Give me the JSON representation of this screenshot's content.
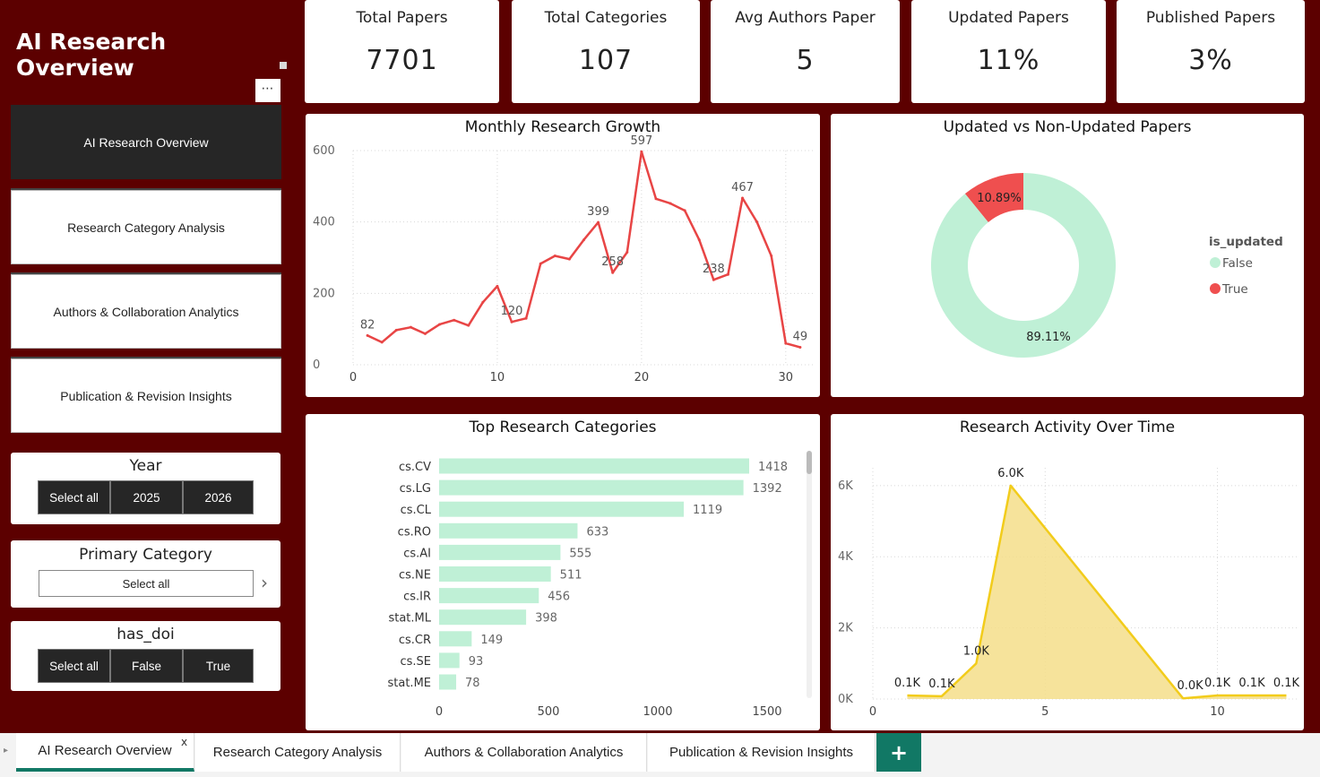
{
  "sidebar": {
    "title": "AI Research Overview",
    "more_label": "⋯",
    "nav": [
      {
        "label": "AI Research Overview"
      },
      {
        "label": "Research Category Analysis"
      },
      {
        "label": "Authors & Collaboration Analytics"
      },
      {
        "label": "Publication & Revision Insights"
      }
    ],
    "year_slicer": {
      "title": "Year",
      "options": [
        "Select all",
        "2025",
        "2026"
      ]
    },
    "category_slicer": {
      "title": "Primary Category",
      "value": "Select all",
      "chevron": "›"
    },
    "doi_slicer": {
      "title": "has_doi",
      "options": [
        "Select all",
        "False",
        "True"
      ]
    }
  },
  "kpis": [
    {
      "label": "Total Papers",
      "value": "7701"
    },
    {
      "label": "Total Categories",
      "value": "107"
    },
    {
      "label": "Avg Authors Paper",
      "value": "5"
    },
    {
      "label": "Updated Papers",
      "value": "11%"
    },
    {
      "label": "Published Papers",
      "value": "3%"
    }
  ],
  "colors": {
    "background": "#5c0000",
    "line": "#e84545",
    "mint": "#bff0d6",
    "red": "#ef4f4f",
    "gold": "#f2cc1b",
    "area_fill": "#f5de8a",
    "tab_accent": "#117865"
  },
  "chart_data": [
    {
      "type": "line",
      "title": "Monthly Research Growth",
      "x": [
        1,
        2,
        3,
        4,
        5,
        6,
        7,
        8,
        9,
        10,
        11,
        12,
        13,
        14,
        15,
        16,
        17,
        18,
        19,
        20,
        21,
        22,
        23,
        24,
        25,
        26,
        27,
        28,
        29,
        30,
        31
      ],
      "values": [
        82,
        63,
        97,
        105,
        87,
        113,
        125,
        110,
        175,
        220,
        120,
        130,
        283,
        305,
        296,
        350,
        399,
        258,
        315,
        597,
        465,
        452,
        432,
        350,
        238,
        253,
        467,
        400,
        305,
        60,
        49
      ],
      "point_labels": [
        {
          "index": 0,
          "text": "82"
        },
        {
          "index": 10,
          "text": "120"
        },
        {
          "index": 16,
          "text": "399"
        },
        {
          "index": 17,
          "text": "258"
        },
        {
          "index": 19,
          "text": "597"
        },
        {
          "index": 24,
          "text": "238"
        },
        {
          "index": 26,
          "text": "467"
        },
        {
          "index": 30,
          "text": "49"
        }
      ],
      "xlim": [
        0,
        32
      ],
      "ylim": [
        0,
        600
      ],
      "x_ticks": [
        "0",
        "10",
        "20",
        "30"
      ],
      "y_ticks": [
        "0",
        "200",
        "400",
        "600"
      ],
      "grid": true
    },
    {
      "type": "pie",
      "title": "Updated vs Non-Updated Papers",
      "donut": true,
      "legend_title": "is_updated",
      "legend_position": "right",
      "slices": [
        {
          "name": "False",
          "value": 89.11,
          "label": "89.11%"
        },
        {
          "name": "True",
          "value": 10.89,
          "label": "10.89%"
        }
      ]
    },
    {
      "type": "bar",
      "orientation": "horizontal",
      "title": "Top Research Categories",
      "categories": [
        "cs.CV",
        "cs.LG",
        "cs.CL",
        "cs.RO",
        "cs.AI",
        "cs.NE",
        "cs.IR",
        "stat.ML",
        "cs.CR",
        "cs.SE",
        "stat.ME"
      ],
      "values": [
        1418,
        1392,
        1119,
        633,
        555,
        511,
        456,
        398,
        149,
        93,
        78
      ],
      "xlim": [
        0,
        1500
      ],
      "x_ticks": [
        "0",
        "500",
        "1000",
        "1500"
      ]
    },
    {
      "type": "area",
      "title": "Research Activity Over Time",
      "x": [
        1,
        2,
        3,
        4,
        9,
        10,
        11,
        12
      ],
      "values": [
        100,
        80,
        1000,
        6000,
        20,
        100,
        100,
        100
      ],
      "point_labels": [
        "0.1K",
        "0.1K",
        "1.0K",
        "6.0K",
        "0.0K",
        "0.1K",
        "0.1K",
        "0.1K"
      ],
      "xlim": [
        0,
        12.3
      ],
      "ylim": [
        0,
        6500
      ],
      "x_ticks": [
        "0",
        "5",
        "10"
      ],
      "y_ticks": [
        "0K",
        "2K",
        "4K",
        "6K"
      ],
      "grid": true
    }
  ],
  "tabs": [
    {
      "label": "AI Research Overview"
    },
    {
      "label": "Research Category Analysis"
    },
    {
      "label": "Authors & Collaboration Analytics"
    },
    {
      "label": "Publication & Revision Insights"
    }
  ],
  "tab_close": "x",
  "tab_add": "+",
  "tab_scroll": "▸"
}
